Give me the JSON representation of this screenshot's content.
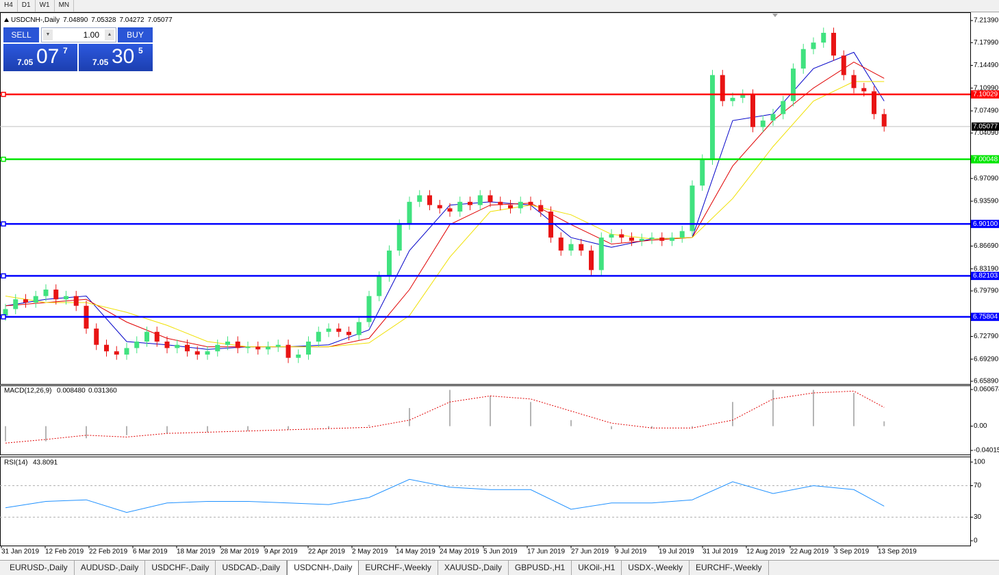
{
  "toolbar": [
    "H4",
    "D1",
    "W1",
    "MN"
  ],
  "trade_panel": {
    "sell_label": "SELL",
    "buy_label": "BUY",
    "volume": "1.00",
    "sell_price": {
      "big": "7.05",
      "main": "07",
      "frac": "7"
    },
    "buy_price": {
      "big": "7.05",
      "main": "30",
      "frac": "5"
    }
  },
  "chart_data": {
    "type": "candlestick",
    "symbol": "USDCNH-,Daily",
    "ohlc_readout": [
      "7.04890",
      "7.05328",
      "7.04272",
      "7.05077"
    ],
    "up_color": "#40e27f",
    "down_color": "#e81414",
    "ylim": [
      6.6589,
      7.2139
    ],
    "yticks": [
      {
        "value": 7.2139,
        "label": "7.21390"
      },
      {
        "value": 7.1799,
        "label": "7.17990"
      },
      {
        "value": 7.1449,
        "label": "7.14490"
      },
      {
        "value": 7.1099,
        "label": "7.10990"
      },
      {
        "value": 7.0749,
        "label": "7.07490"
      },
      {
        "value": 7.0409,
        "label": "7.04090"
      },
      {
        "value": 6.9709,
        "label": "6.97090"
      },
      {
        "value": 6.9359,
        "label": "6.93590"
      },
      {
        "value": 6.8669,
        "label": "6.86690"
      },
      {
        "value": 6.8319,
        "label": "6.83190"
      },
      {
        "value": 6.7979,
        "label": "6.79790"
      },
      {
        "value": 6.7279,
        "label": "6.72790"
      },
      {
        "value": 6.6929,
        "label": "6.69290"
      },
      {
        "value": 6.6589,
        "label": "6.65890"
      }
    ],
    "levels": [
      {
        "value": 7.10029,
        "label": "7.10029",
        "color": "#ff0000"
      },
      {
        "value": 7.00048,
        "label": "7.00048",
        "color": "#00e600"
      },
      {
        "value": 6.901,
        "label": "6.90100",
        "color": "#0000ff"
      },
      {
        "value": 6.82103,
        "label": "6.82103",
        "color": "#0000ff"
      },
      {
        "value": 6.75804,
        "label": "6.75804",
        "color": "#0000ff"
      }
    ],
    "current_price": {
      "value": 7.05077,
      "label": "7.05077"
    },
    "candles": [
      [
        6.76,
        6.778,
        6.752,
        6.77
      ],
      [
        6.77,
        6.793,
        6.762,
        6.785
      ],
      [
        6.785,
        6.793,
        6.772,
        6.78
      ],
      [
        6.78,
        6.798,
        6.772,
        6.79
      ],
      [
        6.79,
        6.808,
        6.782,
        6.8
      ],
      [
        6.8,
        6.808,
        6.777,
        6.785
      ],
      [
        6.785,
        6.798,
        6.777,
        6.79
      ],
      [
        6.79,
        6.798,
        6.767,
        6.775
      ],
      [
        6.775,
        6.783,
        6.732,
        6.74
      ],
      [
        6.74,
        6.748,
        6.707,
        6.715
      ],
      [
        6.715,
        6.723,
        6.697,
        6.705
      ],
      [
        6.705,
        6.713,
        6.692,
        6.7
      ],
      [
        6.7,
        6.718,
        6.692,
        6.71
      ],
      [
        6.71,
        6.728,
        6.702,
        6.72
      ],
      [
        6.72,
        6.743,
        6.712,
        6.735
      ],
      [
        6.735,
        6.743,
        6.712,
        6.72
      ],
      [
        6.72,
        6.728,
        6.702,
        6.71
      ],
      [
        6.71,
        6.723,
        6.702,
        6.715
      ],
      [
        6.715,
        6.723,
        6.697,
        6.705
      ],
      [
        6.705,
        6.713,
        6.692,
        6.7
      ],
      [
        6.7,
        6.713,
        6.692,
        6.705
      ],
      [
        6.705,
        6.723,
        6.697,
        6.715
      ],
      [
        6.715,
        6.728,
        6.707,
        6.72
      ],
      [
        6.72,
        6.728,
        6.702,
        6.71
      ],
      [
        6.71,
        6.72,
        6.702,
        6.712
      ],
      [
        6.712,
        6.72,
        6.7,
        6.708
      ],
      [
        6.708,
        6.72,
        6.7,
        6.712
      ],
      [
        6.712,
        6.723,
        6.704,
        6.715
      ],
      [
        6.715,
        6.723,
        6.687,
        6.695
      ],
      [
        6.695,
        6.708,
        6.687,
        6.7
      ],
      [
        6.7,
        6.728,
        6.692,
        6.72
      ],
      [
        6.72,
        6.743,
        6.712,
        6.735
      ],
      [
        6.735,
        6.748,
        6.727,
        6.74
      ],
      [
        6.74,
        6.748,
        6.727,
        6.735
      ],
      [
        6.735,
        6.743,
        6.722,
        6.73
      ],
      [
        6.73,
        6.758,
        6.722,
        6.75
      ],
      [
        6.75,
        6.798,
        6.742,
        6.79
      ],
      [
        6.79,
        6.828,
        6.782,
        6.82
      ],
      [
        6.82,
        6.868,
        6.812,
        6.86
      ],
      [
        6.86,
        6.908,
        6.852,
        6.9
      ],
      [
        6.9,
        6.943,
        6.892,
        6.935
      ],
      [
        6.935,
        6.953,
        6.927,
        6.945
      ],
      [
        6.945,
        6.953,
        6.922,
        6.93
      ],
      [
        6.93,
        6.938,
        6.917,
        6.925
      ],
      [
        6.925,
        6.933,
        6.912,
        6.92
      ],
      [
        6.92,
        6.943,
        6.912,
        6.935
      ],
      [
        6.935,
        6.943,
        6.922,
        6.93
      ],
      [
        6.93,
        6.953,
        6.922,
        6.945
      ],
      [
        6.945,
        6.953,
        6.927,
        6.935
      ],
      [
        6.935,
        6.943,
        6.922,
        6.93
      ],
      [
        6.93,
        6.938,
        6.917,
        6.925
      ],
      [
        6.925,
        6.943,
        6.917,
        6.935
      ],
      [
        6.935,
        6.943,
        6.922,
        6.93
      ],
      [
        6.93,
        6.938,
        6.912,
        6.92
      ],
      [
        6.92,
        6.928,
        6.872,
        6.88
      ],
      [
        6.88,
        6.888,
        6.852,
        6.86
      ],
      [
        6.86,
        6.878,
        6.852,
        6.87
      ],
      [
        6.87,
        6.878,
        6.852,
        6.86
      ],
      [
        6.86,
        6.868,
        6.822,
        6.83
      ],
      [
        6.83,
        6.888,
        6.822,
        6.88
      ],
      [
        6.88,
        6.893,
        6.872,
        6.885
      ],
      [
        6.885,
        6.893,
        6.872,
        6.88
      ],
      [
        6.88,
        6.888,
        6.867,
        6.875
      ],
      [
        6.875,
        6.886,
        6.867,
        6.878
      ],
      [
        6.878,
        6.888,
        6.87,
        6.88
      ],
      [
        6.88,
        6.888,
        6.867,
        6.875
      ],
      [
        6.875,
        6.888,
        6.867,
        6.88
      ],
      [
        6.88,
        6.898,
        6.872,
        6.89
      ],
      [
        6.89,
        6.968,
        6.882,
        6.96
      ],
      [
        6.96,
        7.008,
        6.952,
        7.0
      ],
      [
        7.0,
        7.138,
        6.992,
        7.13
      ],
      [
        7.13,
        7.138,
        7.082,
        7.09
      ],
      [
        7.09,
        7.103,
        7.082,
        7.095
      ],
      [
        7.095,
        7.108,
        7.087,
        7.1
      ],
      [
        7.1,
        7.108,
        7.042,
        7.05
      ],
      [
        7.05,
        7.068,
        7.042,
        7.06
      ],
      [
        7.06,
        7.078,
        7.052,
        7.07
      ],
      [
        7.07,
        7.098,
        7.062,
        7.09
      ],
      [
        7.09,
        7.148,
        7.082,
        7.14
      ],
      [
        7.14,
        7.178,
        7.132,
        7.17
      ],
      [
        7.17,
        7.188,
        7.162,
        7.18
      ],
      [
        7.18,
        7.203,
        7.172,
        7.195
      ],
      [
        7.195,
        7.203,
        7.152,
        7.16
      ],
      [
        7.16,
        7.168,
        7.122,
        7.13
      ],
      [
        7.13,
        7.138,
        7.102,
        7.11
      ],
      [
        7.11,
        7.118,
        7.097,
        7.105
      ],
      [
        7.105,
        7.113,
        7.062,
        7.07
      ],
      [
        7.07,
        7.078,
        7.043,
        7.051
      ]
    ],
    "indicator_x": [
      0,
      4,
      8,
      12,
      16,
      20,
      24,
      28,
      32,
      36,
      40,
      44,
      48,
      52,
      56,
      60,
      64,
      68,
      72,
      76,
      80,
      84,
      87
    ],
    "series": [
      {
        "color": "#0000c8",
        "values": [
          6.775,
          6.785,
          6.79,
          6.72,
          6.715,
          6.708,
          6.712,
          6.712,
          6.715,
          6.738,
          6.86,
          6.93,
          6.935,
          6.93,
          6.88,
          6.865,
          6.878,
          6.88,
          7.06,
          7.07,
          7.14,
          7.165,
          7.09
        ]
      },
      {
        "color": "#e00000",
        "values": [
          6.775,
          6.78,
          6.785,
          6.75,
          6.725,
          6.712,
          6.712,
          6.712,
          6.712,
          6.725,
          6.8,
          6.9,
          6.93,
          6.933,
          6.9,
          6.87,
          6.876,
          6.88,
          6.99,
          7.06,
          7.11,
          7.15,
          7.125
        ]
      },
      {
        "color": "#f0e000",
        "values": [
          6.79,
          6.78,
          6.78,
          6.765,
          6.745,
          6.72,
          6.712,
          6.712,
          6.712,
          6.718,
          6.76,
          6.85,
          6.92,
          6.93,
          6.915,
          6.885,
          6.878,
          6.88,
          6.94,
          7.02,
          7.09,
          7.12,
          7.12
        ]
      }
    ],
    "macd": {
      "name": "MACD(12,26,9)",
      "readout": [
        "0.008480",
        "0.031360"
      ],
      "ylim": [
        -0.040151,
        0.060674
      ],
      "yticks": [
        0.060674,
        {
          "value": 0,
          "label": "0.00"
        },
        -0.040151
      ],
      "histogram": [
        -0.025,
        -0.025,
        -0.02,
        -0.015,
        -0.012,
        -0.01,
        -0.008,
        -0.006,
        -0.004,
        0.002,
        0.03,
        0.06,
        0.05,
        0.04,
        0.01,
        -0.005,
        -0.004,
        -0.002,
        0.04,
        0.06,
        0.06,
        0.055,
        0.008
      ],
      "signal": [
        -0.028,
        -0.022,
        -0.015,
        -0.018,
        -0.012,
        -0.01,
        -0.008,
        -0.006,
        -0.004,
        -0.002,
        0.01,
        0.04,
        0.05,
        0.045,
        0.025,
        0.005,
        -0.003,
        -0.003,
        0.01,
        0.045,
        0.055,
        0.058,
        0.031
      ],
      "hist_color": "#b4b4b4",
      "signal_color": "#e00000"
    },
    "rsi": {
      "name": "RSI(14)",
      "readout": "43.8091",
      "ylim": [
        0,
        100
      ],
      "yticks": [
        100,
        70,
        30,
        0
      ],
      "levels": [
        70,
        30
      ],
      "values": [
        42,
        50,
        52,
        36,
        48,
        50,
        50,
        48,
        46,
        55,
        78,
        68,
        65,
        65,
        40,
        48,
        48,
        52,
        75,
        60,
        70,
        65,
        44
      ],
      "color": "#1e90ff"
    },
    "date_labels": [
      "31 Jan 2019",
      "12 Feb 2019",
      "22 Feb 2019",
      "6 Mar 2019",
      "18 Mar 2019",
      "28 Mar 2019",
      "9 Apr 2019",
      "22 Apr 2019",
      "2 May 2019",
      "14 May 2019",
      "24 May 2019",
      "5 Jun 2019",
      "17 Jun 2019",
      "27 Jun 2019",
      "9 Jul 2019",
      "19 Jul 2019",
      "31 Jul 2019",
      "12 Aug 2019",
      "22 Aug 2019",
      "3 Sep 2019",
      "13 Sep 2019"
    ]
  },
  "tabs": {
    "items": [
      "EURUSD-,Daily",
      "AUDUSD-,Daily",
      "USDCHF-,Daily",
      "USDCAD-,Daily",
      "USDCNH-,Daily",
      "EURCHF-,Weekly",
      "XAUUSD-,Daily",
      "GBPUSD-,H1",
      "UKOil-,H1",
      "USDX-,Weekly",
      "EURCHF-,Weekly"
    ],
    "active": 4
  }
}
